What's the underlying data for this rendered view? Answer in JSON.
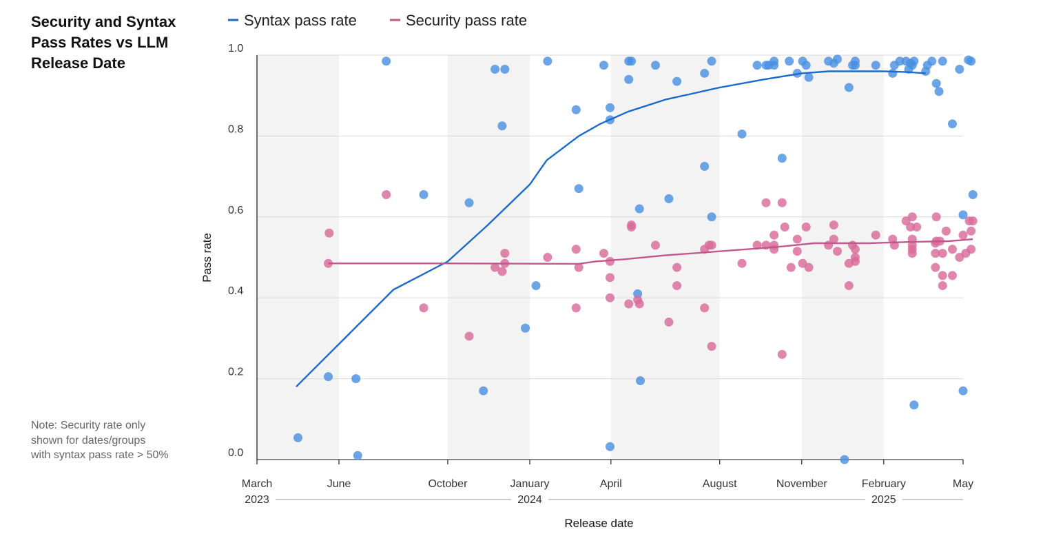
{
  "title": "Security and Syntax\nPass Rates vs LLM\nRelease Date",
  "note": "Note: Security rate only\nshown for dates/groups\nwith syntax pass rate > 50%",
  "chart_data": {
    "type": "scatter",
    "title": "Security and Syntax Pass Rates vs LLM Release Date",
    "xlabel": "Release date",
    "ylabel": "Pass rate",
    "xlim": [
      "2023-03-01",
      "2025-05-01"
    ],
    "ylim": [
      0.0,
      1.0
    ],
    "y_ticks": [
      "0.0",
      "0.2",
      "0.4",
      "0.6",
      "0.8",
      "1.0"
    ],
    "x_ticks": [
      {
        "date": "2023-03-01",
        "label": "March"
      },
      {
        "date": "2023-06-01",
        "label": "June"
      },
      {
        "date": "2023-10-01",
        "label": "October"
      },
      {
        "date": "2024-01-01",
        "label": "January"
      },
      {
        "date": "2024-04-01",
        "label": "April"
      },
      {
        "date": "2024-08-01",
        "label": "August"
      },
      {
        "date": "2024-11-01",
        "label": "November"
      },
      {
        "date": "2025-02-01",
        "label": "February"
      },
      {
        "date": "2025-05-01",
        "label": "May"
      }
    ],
    "year_labels": [
      {
        "year": "2023",
        "tick": "2023-03-01"
      },
      {
        "year": "2024",
        "tick": "2024-01-01"
      },
      {
        "year": "2025",
        "tick": "2025-02-01"
      }
    ],
    "shaded_bands": [
      [
        "2023-03-01",
        "2023-06-01"
      ],
      [
        "2023-10-01",
        "2024-01-01"
      ],
      [
        "2024-04-01",
        "2024-08-01"
      ],
      [
        "2024-11-01",
        "2025-02-01"
      ]
    ],
    "grid": true,
    "legend_position": "top",
    "series": [
      {
        "name": "Syntax pass rate",
        "color": "#1a6acb",
        "point_color": "#4a90e2",
        "trend": [
          [
            "2023-04-14",
            0.18
          ],
          [
            "2023-08-01",
            0.42
          ],
          [
            "2023-10-01",
            0.49
          ],
          [
            "2023-11-15",
            0.58
          ],
          [
            "2024-01-01",
            0.68
          ],
          [
            "2024-01-20",
            0.74
          ],
          [
            "2024-02-25",
            0.8
          ],
          [
            "2024-03-20",
            0.83
          ],
          [
            "2024-04-20",
            0.86
          ],
          [
            "2024-06-01",
            0.89
          ],
          [
            "2024-08-01",
            0.92
          ],
          [
            "2024-09-20",
            0.94
          ],
          [
            "2024-11-01",
            0.955
          ],
          [
            "2024-12-01",
            0.96
          ],
          [
            "2025-02-01",
            0.96
          ],
          [
            "2025-03-01",
            0.958
          ],
          [
            "2025-03-20",
            0.955
          ]
        ],
        "points": [
          [
            "2023-04-16",
            0.054
          ],
          [
            "2023-05-20",
            0.205
          ],
          [
            "2023-06-20",
            0.2
          ],
          [
            "2023-06-22",
            0.01
          ],
          [
            "2023-07-24",
            0.985
          ],
          [
            "2023-09-04",
            0.655
          ],
          [
            "2023-10-25",
            0.635
          ],
          [
            "2023-11-10",
            0.17
          ],
          [
            "2023-11-23",
            0.965
          ],
          [
            "2023-12-01",
            0.825
          ],
          [
            "2023-12-04",
            0.965
          ],
          [
            "2023-12-27",
            0.325
          ],
          [
            "2024-01-08",
            0.43
          ],
          [
            "2024-01-21",
            0.985
          ],
          [
            "2024-02-22",
            0.865
          ],
          [
            "2024-02-25",
            0.67
          ],
          [
            "2024-03-24",
            0.975
          ],
          [
            "2024-03-31",
            0.87
          ],
          [
            "2024-03-31",
            0.84
          ],
          [
            "2024-03-31",
            0.032
          ],
          [
            "2024-04-21",
            0.985
          ],
          [
            "2024-04-21",
            0.94
          ],
          [
            "2024-04-24",
            0.985
          ],
          [
            "2024-05-01",
            0.41
          ],
          [
            "2024-05-03",
            0.62
          ],
          [
            "2024-05-04",
            0.195
          ],
          [
            "2024-05-21",
            0.975
          ],
          [
            "2024-06-05",
            0.645
          ],
          [
            "2024-06-14",
            0.935
          ],
          [
            "2024-07-15",
            0.955
          ],
          [
            "2024-07-15",
            0.725
          ],
          [
            "2024-07-23",
            0.985
          ],
          [
            "2024-07-23",
            0.6
          ],
          [
            "2024-08-26",
            0.805
          ],
          [
            "2024-09-12",
            0.975
          ],
          [
            "2024-09-22",
            0.975
          ],
          [
            "2024-09-25",
            0.975
          ],
          [
            "2024-10-01",
            0.985
          ],
          [
            "2024-10-01",
            0.975
          ],
          [
            "2024-10-10",
            0.745
          ],
          [
            "2024-10-18",
            0.985
          ],
          [
            "2024-10-27",
            0.955
          ],
          [
            "2024-11-02",
            0.985
          ],
          [
            "2024-11-06",
            0.975
          ],
          [
            "2024-11-09",
            0.945
          ],
          [
            "2024-12-01",
            0.985
          ],
          [
            "2024-12-07",
            0.98
          ],
          [
            "2024-12-11",
            0.99
          ],
          [
            "2024-12-19",
            0.0
          ],
          [
            "2024-12-24",
            0.92
          ],
          [
            "2024-12-28",
            0.975
          ],
          [
            "2024-12-31",
            0.985
          ],
          [
            "2024-12-31",
            0.975
          ],
          [
            "2025-01-23",
            0.975
          ],
          [
            "2025-02-11",
            0.955
          ],
          [
            "2025-02-13",
            0.975
          ],
          [
            "2025-02-19",
            0.985
          ],
          [
            "2025-02-26",
            0.985
          ],
          [
            "2025-03-01",
            0.965
          ],
          [
            "2025-03-03",
            0.98
          ],
          [
            "2025-03-05",
            0.975
          ],
          [
            "2025-03-07",
            0.985
          ],
          [
            "2025-03-07",
            0.135
          ],
          [
            "2025-03-20",
            0.96
          ],
          [
            "2025-03-22",
            0.975
          ],
          [
            "2025-03-27",
            0.985
          ],
          [
            "2025-04-01",
            0.93
          ],
          [
            "2025-04-04",
            0.91
          ],
          [
            "2025-04-08",
            0.985
          ],
          [
            "2025-04-19",
            0.83
          ],
          [
            "2025-04-27",
            0.965
          ],
          [
            "2025-05-01",
            0.605
          ],
          [
            "2025-05-01",
            0.17
          ],
          [
            "2025-05-07",
            0.988
          ],
          [
            "2025-05-10",
            0.985
          ],
          [
            "2025-05-12",
            0.655
          ]
        ]
      },
      {
        "name": "Security pass rate",
        "color": "#c2578c",
        "point_color": "#d96a9a",
        "trend": [
          [
            "2023-05-20",
            0.485
          ],
          [
            "2023-10-01",
            0.485
          ],
          [
            "2024-02-25",
            0.484
          ],
          [
            "2024-03-15",
            0.49
          ],
          [
            "2024-04-15",
            0.495
          ],
          [
            "2024-06-01",
            0.505
          ],
          [
            "2024-08-01",
            0.515
          ],
          [
            "2024-10-01",
            0.525
          ],
          [
            "2024-11-15",
            0.535
          ],
          [
            "2025-01-15",
            0.535
          ],
          [
            "2025-03-01",
            0.538
          ],
          [
            "2025-04-15",
            0.54
          ],
          [
            "2025-05-12",
            0.545
          ]
        ],
        "points": [
          [
            "2023-05-20",
            0.485
          ],
          [
            "2023-05-21",
            0.56
          ],
          [
            "2023-07-24",
            0.655
          ],
          [
            "2023-09-04",
            0.375
          ],
          [
            "2023-10-25",
            0.305
          ],
          [
            "2023-11-23",
            0.475
          ],
          [
            "2023-12-01",
            0.465
          ],
          [
            "2023-12-04",
            0.485
          ],
          [
            "2023-12-04",
            0.51
          ],
          [
            "2024-01-21",
            0.5
          ],
          [
            "2024-02-22",
            0.52
          ],
          [
            "2024-02-22",
            0.375
          ],
          [
            "2024-02-25",
            0.475
          ],
          [
            "2024-03-24",
            0.51
          ],
          [
            "2024-03-31",
            0.49
          ],
          [
            "2024-03-31",
            0.45
          ],
          [
            "2024-03-31",
            0.4
          ],
          [
            "2024-04-21",
            0.385
          ],
          [
            "2024-04-24",
            0.58
          ],
          [
            "2024-04-24",
            0.575
          ],
          [
            "2024-05-01",
            0.395
          ],
          [
            "2024-05-03",
            0.385
          ],
          [
            "2024-05-21",
            0.53
          ],
          [
            "2024-06-05",
            0.34
          ],
          [
            "2024-06-14",
            0.475
          ],
          [
            "2024-06-14",
            0.43
          ],
          [
            "2024-07-15",
            0.375
          ],
          [
            "2024-07-15",
            0.52
          ],
          [
            "2024-07-20",
            0.53
          ],
          [
            "2024-07-23",
            0.53
          ],
          [
            "2024-07-23",
            0.28
          ],
          [
            "2024-08-26",
            0.485
          ],
          [
            "2024-09-12",
            0.53
          ],
          [
            "2024-09-22",
            0.53
          ],
          [
            "2024-09-22",
            0.635
          ],
          [
            "2024-10-01",
            0.52
          ],
          [
            "2024-10-01",
            0.53
          ],
          [
            "2024-10-01",
            0.555
          ],
          [
            "2024-10-10",
            0.635
          ],
          [
            "2024-10-10",
            0.26
          ],
          [
            "2024-10-13",
            0.575
          ],
          [
            "2024-10-20",
            0.475
          ],
          [
            "2024-10-27",
            0.545
          ],
          [
            "2024-10-27",
            0.515
          ],
          [
            "2024-11-02",
            0.485
          ],
          [
            "2024-11-06",
            0.575
          ],
          [
            "2024-11-09",
            0.475
          ],
          [
            "2024-12-01",
            0.53
          ],
          [
            "2024-12-07",
            0.58
          ],
          [
            "2024-12-07",
            0.545
          ],
          [
            "2024-12-11",
            0.515
          ],
          [
            "2024-12-24",
            0.485
          ],
          [
            "2024-12-24",
            0.43
          ],
          [
            "2024-12-28",
            0.53
          ],
          [
            "2024-12-31",
            0.52
          ],
          [
            "2024-12-31",
            0.5
          ],
          [
            "2024-12-31",
            0.49
          ],
          [
            "2025-01-23",
            0.555
          ],
          [
            "2025-02-11",
            0.545
          ],
          [
            "2025-02-13",
            0.53
          ],
          [
            "2025-02-26",
            0.59
          ],
          [
            "2025-03-03",
            0.575
          ],
          [
            "2025-03-05",
            0.6
          ],
          [
            "2025-03-05",
            0.545
          ],
          [
            "2025-03-05",
            0.53
          ],
          [
            "2025-03-05",
            0.52
          ],
          [
            "2025-03-05",
            0.51
          ],
          [
            "2025-03-10",
            0.575
          ],
          [
            "2025-03-31",
            0.475
          ],
          [
            "2025-03-31",
            0.51
          ],
          [
            "2025-03-31",
            0.535
          ],
          [
            "2025-04-01",
            0.6
          ],
          [
            "2025-04-01",
            0.54
          ],
          [
            "2025-04-05",
            0.54
          ],
          [
            "2025-04-08",
            0.51
          ],
          [
            "2025-04-08",
            0.455
          ],
          [
            "2025-04-08",
            0.43
          ],
          [
            "2025-04-12",
            0.565
          ],
          [
            "2025-04-19",
            0.52
          ],
          [
            "2025-04-19",
            0.455
          ],
          [
            "2025-04-27",
            0.5
          ],
          [
            "2025-05-01",
            0.555
          ],
          [
            "2025-05-04",
            0.51
          ],
          [
            "2025-05-08",
            0.59
          ],
          [
            "2025-05-10",
            0.565
          ],
          [
            "2025-05-10",
            0.52
          ],
          [
            "2025-05-12",
            0.59
          ]
        ]
      }
    ]
  }
}
